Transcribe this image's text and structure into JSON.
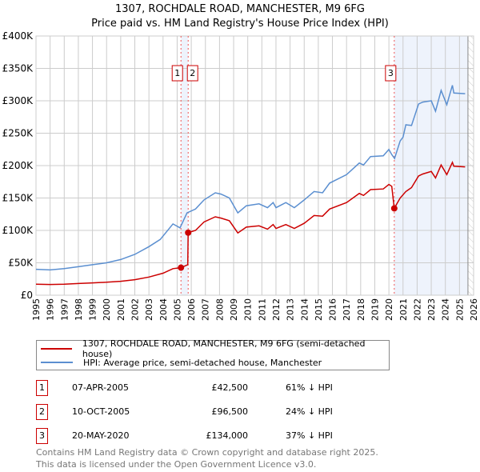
{
  "title": {
    "line1": "1307, ROCHDALE ROAD, MANCHESTER, M9 6FG",
    "line2": "Price paid vs. HM Land Registry's House Price Index (HPI)"
  },
  "chart_data": {
    "type": "line",
    "title": "1307, ROCHDALE ROAD, MANCHESTER, M9 6FG — Price paid vs. HM Land Registry's House Price Index (HPI)",
    "xlim": [
      1995,
      2026
    ],
    "ylim": [
      0,
      400000
    ],
    "x_ticks": [
      1995,
      1996,
      1997,
      1998,
      1999,
      2000,
      2001,
      2002,
      2003,
      2004,
      2005,
      2006,
      2007,
      2008,
      2009,
      2010,
      2011,
      2012,
      2013,
      2014,
      2015,
      2016,
      2017,
      2018,
      2019,
      2020,
      2021,
      2022,
      2023,
      2024,
      2025,
      2026
    ],
    "y_ticks": [
      {
        "v": 0,
        "label": "£0"
      },
      {
        "v": 50000,
        "label": "£50K"
      },
      {
        "v": 100000,
        "label": "£100K"
      },
      {
        "v": 150000,
        "label": "£150K"
      },
      {
        "v": 200000,
        "label": "£200K"
      },
      {
        "v": 250000,
        "label": "£250K"
      },
      {
        "v": 300000,
        "label": "£300K"
      },
      {
        "v": 350000,
        "label": "£350K"
      },
      {
        "v": 400000,
        "label": "£400K"
      }
    ],
    "grid": true,
    "colors": {
      "property": "#cc0000",
      "hpi": "#5b8fd0",
      "shade": "#eef3fc"
    },
    "series": [
      {
        "name": "1307, ROCHDALE ROAD, MANCHESTER, M9 6FG (semi-detached house)",
        "points": [
          [
            1995,
            17000
          ],
          [
            1996,
            16500
          ],
          [
            1997,
            17000
          ],
          [
            1998,
            18000
          ],
          [
            1999,
            19000
          ],
          [
            2000,
            20000
          ],
          [
            2001,
            21500
          ],
          [
            2002,
            24000
          ],
          [
            2003,
            28000
          ],
          [
            2004,
            34000
          ],
          [
            2004.7,
            41000
          ],
          [
            2005.27,
            42500
          ],
          [
            2005.75,
            47000
          ],
          [
            2005.78,
            96500
          ],
          [
            2006.3,
            100000
          ],
          [
            2006.9,
            113000
          ],
          [
            2007.7,
            121000
          ],
          [
            2008.1,
            119000
          ],
          [
            2008.7,
            115000
          ],
          [
            2009.3,
            96000
          ],
          [
            2009.9,
            105000
          ],
          [
            2010.8,
            107000
          ],
          [
            2011.4,
            102000
          ],
          [
            2011.8,
            109000
          ],
          [
            2012.0,
            103000
          ],
          [
            2012.7,
            109000
          ],
          [
            2013.3,
            103000
          ],
          [
            2014.0,
            111000
          ],
          [
            2014.7,
            123000
          ],
          [
            2015.3,
            122000
          ],
          [
            2015.8,
            133000
          ],
          [
            2017.0,
            143000
          ],
          [
            2017.9,
            157000
          ],
          [
            2018.2,
            154000
          ],
          [
            2018.7,
            163000
          ],
          [
            2019.6,
            164000
          ],
          [
            2020.0,
            171000
          ],
          [
            2020.2,
            168000
          ],
          [
            2020.38,
            134000
          ],
          [
            2020.8,
            150000
          ],
          [
            2021.2,
            160000
          ],
          [
            2021.6,
            166000
          ],
          [
            2022.1,
            184000
          ],
          [
            2022.4,
            187000
          ],
          [
            2023.0,
            191000
          ],
          [
            2023.3,
            181000
          ],
          [
            2023.7,
            201000
          ],
          [
            2024.1,
            186000
          ],
          [
            2024.5,
            205000
          ],
          [
            2024.6,
            199000
          ],
          [
            2025.4,
            198000
          ]
        ]
      },
      {
        "name": "HPI: Average price, semi-detached house, Manchester",
        "points": [
          [
            1995,
            40000
          ],
          [
            1996,
            39000
          ],
          [
            1997,
            41000
          ],
          [
            1998,
            44000
          ],
          [
            1999,
            47000
          ],
          [
            2000,
            50000
          ],
          [
            2001,
            55000
          ],
          [
            2002,
            63000
          ],
          [
            2003,
            75000
          ],
          [
            2003.8,
            86000
          ],
          [
            2004.7,
            110000
          ],
          [
            2005.2,
            104000
          ],
          [
            2005.7,
            127000
          ],
          [
            2006.3,
            133000
          ],
          [
            2006.9,
            147000
          ],
          [
            2007.7,
            158000
          ],
          [
            2008.1,
            156000
          ],
          [
            2008.7,
            150000
          ],
          [
            2009.3,
            127000
          ],
          [
            2009.9,
            138000
          ],
          [
            2010.8,
            141000
          ],
          [
            2011.4,
            135000
          ],
          [
            2011.8,
            143000
          ],
          [
            2012.0,
            135000
          ],
          [
            2012.7,
            143000
          ],
          [
            2013.3,
            135000
          ],
          [
            2014.0,
            147000
          ],
          [
            2014.7,
            160000
          ],
          [
            2015.3,
            158000
          ],
          [
            2015.8,
            173000
          ],
          [
            2017.0,
            186000
          ],
          [
            2017.9,
            204000
          ],
          [
            2018.2,
            201000
          ],
          [
            2018.7,
            214000
          ],
          [
            2019.6,
            215000
          ],
          [
            2020.0,
            225000
          ],
          [
            2020.2,
            217000
          ],
          [
            2020.4,
            211000
          ],
          [
            2020.8,
            238000
          ],
          [
            2021.0,
            244000
          ],
          [
            2021.2,
            263000
          ],
          [
            2021.6,
            262000
          ],
          [
            2022.1,
            295000
          ],
          [
            2022.4,
            298000
          ],
          [
            2023.0,
            300000
          ],
          [
            2023.3,
            284000
          ],
          [
            2023.7,
            316000
          ],
          [
            2024.1,
            294000
          ],
          [
            2024.5,
            324000
          ],
          [
            2024.6,
            312000
          ],
          [
            2025.4,
            311000
          ]
        ]
      }
    ],
    "sales": [
      {
        "id": "1",
        "x": 2005.27,
        "y": 42500
      },
      {
        "id": "2",
        "x": 2005.78,
        "y": 96500
      },
      {
        "id": "3",
        "x": 2020.38,
        "y": 134000
      }
    ],
    "shaded_range": [
      2020.38,
      2025.6
    ],
    "forecast_hatch_from": 2025.6
  },
  "legend": {
    "property": "1307, ROCHDALE ROAD, MANCHESTER, M9 6FG (semi-detached house)",
    "hpi": "HPI: Average price, semi-detached house, Manchester"
  },
  "sales_table": [
    {
      "num": "1",
      "date": "07-APR-2005",
      "price": "£42,500",
      "hpi": "61% ↓ HPI"
    },
    {
      "num": "2",
      "date": "10-OCT-2005",
      "price": "£96,500",
      "hpi": "24% ↓ HPI"
    },
    {
      "num": "3",
      "date": "20-MAY-2020",
      "price": "£134,000",
      "hpi": "37% ↓ HPI"
    }
  ],
  "footer": {
    "line1": "Contains HM Land Registry data © Crown copyright and database right 2025.",
    "line2": "This data is licensed under the Open Government Licence v3.0."
  }
}
